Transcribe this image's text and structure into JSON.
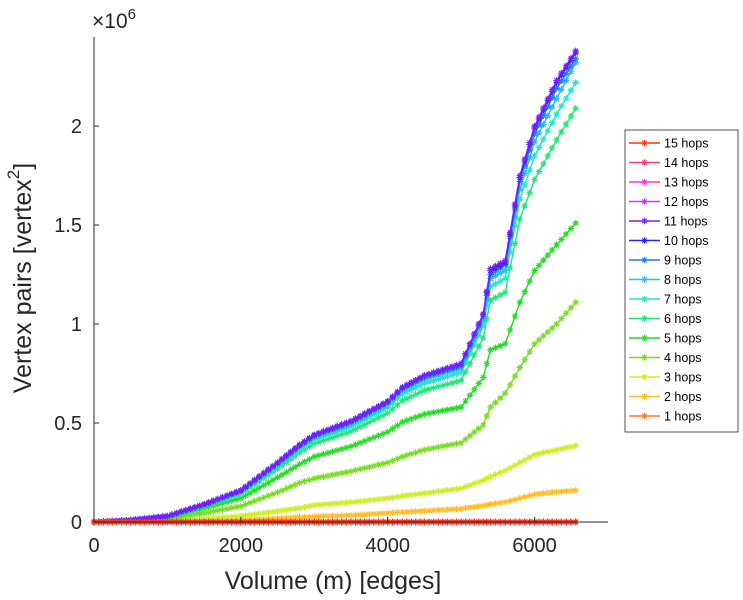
{
  "chart_data": {
    "type": "line",
    "xlabel": "Volume (m) [edges]",
    "ylabel": "Vertex pairs [vertex",
    "ylabel_superscript": "2",
    "ylabel_close": "]",
    "xlim": [
      0,
      7000
    ],
    "ylim": [
      0,
      2450000
    ],
    "xticks": [
      0,
      2000,
      4000,
      6000
    ],
    "xtick_labels": [
      "0",
      "2000",
      "4000",
      "6000"
    ],
    "yticks": [
      0,
      500000,
      1000000,
      1500000,
      2000000
    ],
    "ytick_labels": [
      "0",
      "0.5",
      "1",
      "1.5",
      "2"
    ],
    "y_multiplier_base": "×10",
    "y_multiplier_exp": "6",
    "grid": false,
    "legend_position": "right",
    "marker": "*",
    "x": [
      0,
      500,
      1000,
      1500,
      2000,
      2500,
      2800,
      3000,
      3500,
      4000,
      4200,
      4500,
      5000,
      5300,
      5400,
      5600,
      5800,
      6000,
      6300,
      6560
    ],
    "series": [
      {
        "name": "15 hops",
        "color": "#ff3300",
        "values": [
          0,
          0,
          0,
          0,
          0,
          0,
          0,
          0,
          0,
          0,
          0,
          0,
          0,
          0,
          0,
          0,
          0,
          0,
          0,
          0
        ]
      },
      {
        "name": "14 hops",
        "color": "#ff3a7a",
        "values": [
          0,
          0,
          0,
          0,
          0,
          0,
          0,
          0,
          0,
          0,
          0,
          0,
          0,
          0,
          0,
          0,
          0,
          0,
          0,
          0
        ]
      },
      {
        "name": "13 hops",
        "color": "#ff33cc",
        "values": [
          0,
          0,
          0,
          0,
          0,
          0,
          0,
          0,
          0,
          0,
          0,
          0,
          0,
          0,
          0,
          0,
          0,
          0,
          0,
          0
        ]
      },
      {
        "name": "12 hops",
        "color": "#cc33ff",
        "values": [
          0,
          0,
          0,
          0,
          0,
          0,
          0,
          0,
          0,
          0,
          0,
          0,
          0,
          0,
          0,
          0,
          0,
          0,
          0,
          0
        ]
      },
      {
        "name": "11 hops",
        "color": "#7a1aff",
        "values": [
          0,
          10000,
          30000,
          90000,
          160000,
          300000,
          390000,
          440000,
          510000,
          610000,
          680000,
          740000,
          800000,
          1050000,
          1280000,
          1320000,
          1750000,
          2000000,
          2230000,
          2380000
        ]
      },
      {
        "name": "10 hops",
        "color": "#2222ff",
        "values": [
          0,
          10000,
          30000,
          90000,
          160000,
          300000,
          390000,
          440000,
          510000,
          610000,
          680000,
          740000,
          800000,
          1050000,
          1270000,
          1310000,
          1740000,
          1990000,
          2220000,
          2370000
        ]
      },
      {
        "name": "9 hops",
        "color": "#2277ff",
        "values": [
          0,
          10000,
          30000,
          88000,
          158000,
          297000,
          386000,
          437000,
          505000,
          605000,
          675000,
          735000,
          790000,
          1040000,
          1250000,
          1300000,
          1720000,
          1960000,
          2190000,
          2340000
        ]
      },
      {
        "name": "8 hops",
        "color": "#22bbff",
        "values": [
          0,
          10000,
          29000,
          86000,
          155000,
          292000,
          380000,
          430000,
          497000,
          596000,
          665000,
          722000,
          778000,
          1020000,
          1230000,
          1270000,
          1680000,
          1920000,
          2140000,
          2320000
        ]
      },
      {
        "name": "7 hops",
        "color": "#22e6cc",
        "values": [
          0,
          9000,
          28000,
          84000,
          150000,
          282000,
          368000,
          416000,
          482000,
          578000,
          646000,
          700000,
          755000,
          990000,
          1190000,
          1230000,
          1630000,
          1850000,
          2060000,
          2220000
        ]
      },
      {
        "name": "6 hops",
        "color": "#22e677",
        "values": [
          0,
          9000,
          27000,
          80000,
          142000,
          268000,
          350000,
          396000,
          458000,
          550000,
          613000,
          665000,
          715000,
          930000,
          1120000,
          1160000,
          1530000,
          1730000,
          1930000,
          2090000
        ]
      },
      {
        "name": "5 hops",
        "color": "#22dd22",
        "values": [
          0,
          8000,
          24000,
          70000,
          120000,
          225000,
          292000,
          330000,
          382000,
          455000,
          505000,
          545000,
          580000,
          730000,
          870000,
          900000,
          1110000,
          1270000,
          1400000,
          1510000
        ]
      },
      {
        "name": "4 hops",
        "color": "#77dd22",
        "values": [
          0,
          6000,
          16000,
          45000,
          80000,
          150000,
          198000,
          220000,
          256000,
          300000,
          330000,
          365000,
          400000,
          490000,
          580000,
          650000,
          780000,
          900000,
          1000000,
          1110000
        ]
      },
      {
        "name": "3 hops",
        "color": "#ccee22",
        "values": [
          0,
          2000,
          6000,
          15000,
          30000,
          55000,
          70000,
          85000,
          100000,
          120000,
          132000,
          145000,
          170000,
          210000,
          230000,
          260000,
          300000,
          340000,
          365000,
          385000
        ]
      },
      {
        "name": "2 hops",
        "color": "#ffbb22",
        "values": [
          0,
          600,
          1500,
          4000,
          9000,
          18000,
          24000,
          28000,
          34000,
          45000,
          50000,
          56000,
          67000,
          82000,
          90000,
          100000,
          120000,
          140000,
          152000,
          160000
        ]
      },
      {
        "name": "1 hops",
        "color": "#ff7722",
        "values": [
          0,
          0,
          0,
          0,
          0,
          0,
          0,
          0,
          0,
          0,
          0,
          0,
          0,
          0,
          0,
          0,
          0,
          0,
          0,
          0
        ]
      }
    ]
  }
}
